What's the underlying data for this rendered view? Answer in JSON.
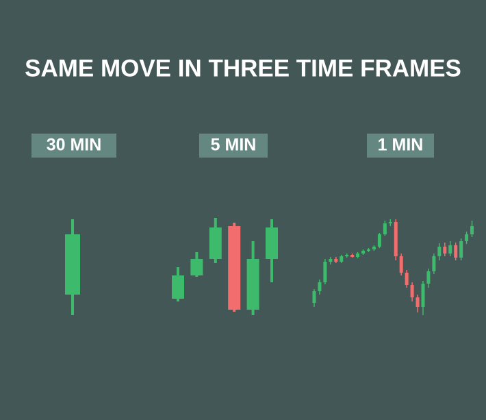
{
  "title": "SAME MOVE IN THREE TIME FRAMES",
  "chart_data": [
    {
      "type": "candlestick",
      "title": "30 MIN",
      "up_color": "#3dba6b",
      "down_color": "#f26d6d",
      "ylim": [
        0,
        200
      ],
      "open": [
        40
      ],
      "high": [
        150
      ],
      "low": [
        10
      ],
      "close": [
        128
      ]
    },
    {
      "type": "candlestick",
      "title": "5 MIN",
      "up_color": "#3dba6b",
      "down_color": "#f26d6d",
      "ylim": [
        0,
        200
      ],
      "open": [
        34,
        68,
        92,
        140,
        18,
        92
      ],
      "high": [
        80,
        102,
        152,
        145,
        118,
        150
      ],
      "low": [
        30,
        66,
        86,
        15,
        10,
        58
      ],
      "close": [
        68,
        92,
        138,
        18,
        92,
        138
      ]
    },
    {
      "type": "candlestick",
      "title": "1 MIN",
      "up_color": "#3dba6b",
      "down_color": "#f26d6d",
      "ylim": [
        0,
        200
      ],
      "open": [
        28,
        45,
        58,
        88,
        92,
        88,
        96,
        98,
        95,
        100,
        104,
        106,
        110,
        128,
        144,
        146,
        96,
        72,
        54,
        36,
        22,
        56,
        74,
        96,
        110,
        100,
        112,
        94,
        118,
        128
      ],
      "high": [
        48,
        62,
        92,
        95,
        95,
        98,
        100,
        100,
        102,
        106,
        108,
        112,
        130,
        148,
        150,
        150,
        100,
        76,
        58,
        40,
        60,
        78,
        100,
        115,
        116,
        118,
        116,
        122,
        132,
        148
      ],
      "low": [
        22,
        40,
        55,
        84,
        86,
        86,
        94,
        94,
        93,
        98,
        102,
        104,
        108,
        126,
        140,
        90,
        68,
        50,
        30,
        14,
        10,
        50,
        70,
        90,
        96,
        96,
        90,
        90,
        114,
        124
      ],
      "close": [
        45,
        58,
        88,
        92,
        88,
        96,
        98,
        95,
        100,
        104,
        106,
        110,
        128,
        144,
        146,
        96,
        72,
        54,
        36,
        22,
        56,
        74,
        96,
        110,
        100,
        112,
        94,
        118,
        128,
        140
      ]
    }
  ]
}
